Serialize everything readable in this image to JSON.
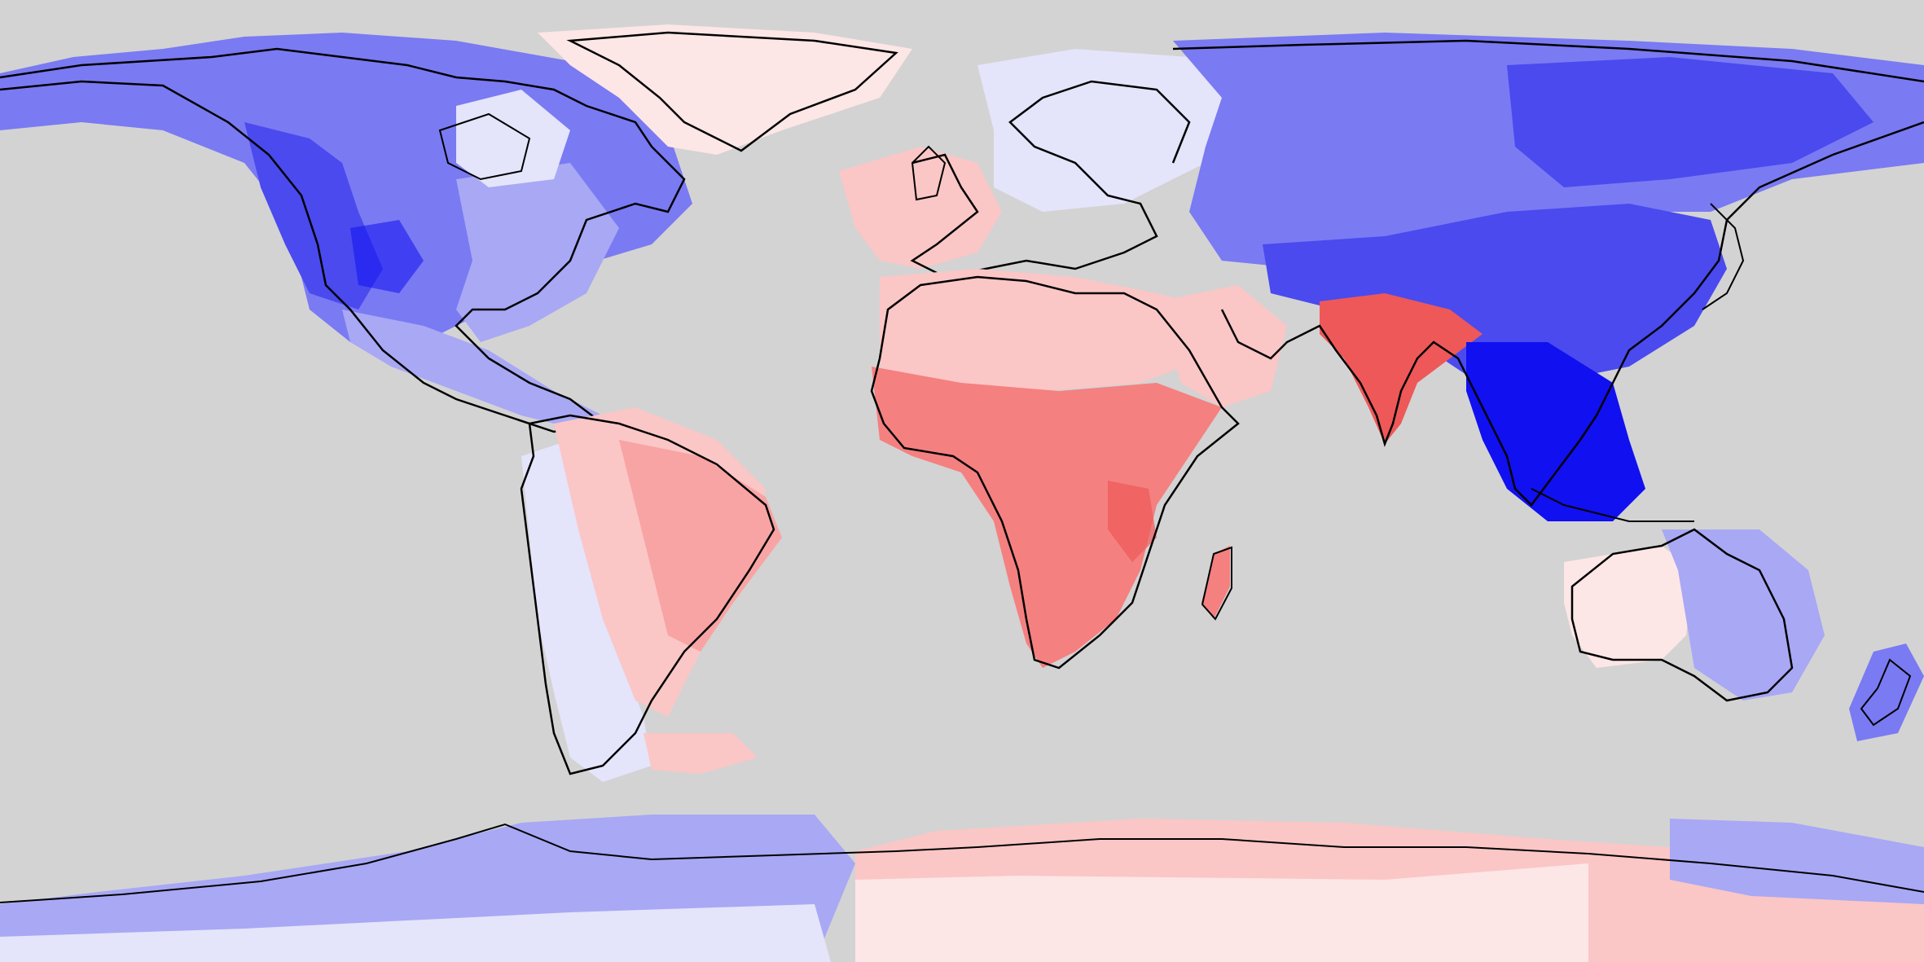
{
  "map": {
    "projection": "equirectangular",
    "extent": {
      "lon": [
        -180,
        180
      ],
      "lat": [
        -90,
        90
      ]
    },
    "ocean_color": "#d3d3d3",
    "coastline_color": "#000000",
    "palette": {
      "neg_strong": "#1010f0",
      "neg_high": "#4a4aef",
      "neg_mid": "#7a7af3",
      "neg_low": "#a8a8f5",
      "neg_faint": "#e4e4fb",
      "pos_faint": "#fde6e6",
      "pos_low": "#fbc6c6",
      "pos_mid": "#f8a4a4",
      "pos_high": "#f58080",
      "pos_strong": "#ee5858"
    },
    "regions": [
      {
        "name": "alaska-canada",
        "sign": "negative",
        "level": "mid"
      },
      {
        "name": "western-us",
        "sign": "negative",
        "level": "high"
      },
      {
        "name": "eastern-us",
        "sign": "negative",
        "level": "low"
      },
      {
        "name": "mexico-central-america",
        "sign": "negative",
        "level": "low"
      },
      {
        "name": "greenland",
        "sign": "positive",
        "level": "faint"
      },
      {
        "name": "northern-south-america",
        "sign": "positive",
        "level": "low"
      },
      {
        "name": "brazil",
        "sign": "positive",
        "level": "mid"
      },
      {
        "name": "andes-patagonia",
        "sign": "negative",
        "level": "faint"
      },
      {
        "name": "western-europe",
        "sign": "positive",
        "level": "low"
      },
      {
        "name": "scandinavia",
        "sign": "negative",
        "level": "faint"
      },
      {
        "name": "north-africa",
        "sign": "positive",
        "level": "low"
      },
      {
        "name": "sub-saharan-africa",
        "sign": "positive",
        "level": "high"
      },
      {
        "name": "madagascar",
        "sign": "positive",
        "level": "high"
      },
      {
        "name": "arabia",
        "sign": "positive",
        "level": "low"
      },
      {
        "name": "russia-siberia",
        "sign": "negative",
        "level": "mid"
      },
      {
        "name": "india",
        "sign": "positive",
        "level": "strong"
      },
      {
        "name": "china",
        "sign": "negative",
        "level": "high"
      },
      {
        "name": "southeast-asia",
        "sign": "negative",
        "level": "strong"
      },
      {
        "name": "australia-west",
        "sign": "positive",
        "level": "faint"
      },
      {
        "name": "australia-east",
        "sign": "negative",
        "level": "low"
      },
      {
        "name": "new-zealand",
        "sign": "negative",
        "level": "mid"
      },
      {
        "name": "antarctica-west",
        "sign": "negative",
        "level": "low"
      },
      {
        "name": "antarctica-east",
        "sign": "positive",
        "level": "low"
      }
    ]
  }
}
